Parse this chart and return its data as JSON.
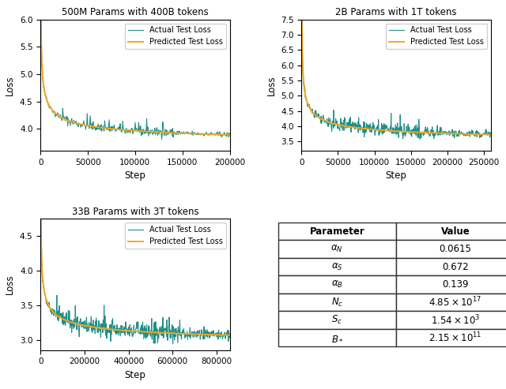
{
  "plot1": {
    "title": "500M Params with 400B tokens",
    "xlabel": "Step",
    "ylabel": "Loss",
    "max_steps": 200000,
    "start_step": 500,
    "start_loss": 6.0,
    "end_loss": 3.65,
    "noise_scale": 0.022,
    "ylim": [
      3.6,
      6.0
    ],
    "xlim": [
      0,
      200000
    ],
    "xticks": [
      0,
      50000,
      100000,
      150000,
      200000
    ],
    "yticks": [
      4.0,
      4.5,
      5.0,
      5.5,
      6.0
    ],
    "actual_color": "#1f8f8a",
    "predicted_color": "#f5a623",
    "legend_loc": "upper right",
    "n_points": 400
  },
  "plot2": {
    "title": "2B Params with 1T tokens",
    "xlabel": "Step",
    "ylabel": "Loss",
    "max_steps": 260000,
    "start_step": 500,
    "start_loss": 7.4,
    "end_loss": 3.35,
    "noise_scale": 0.055,
    "ylim": [
      3.2,
      7.5
    ],
    "xlim": [
      0,
      260000
    ],
    "xticks": [
      0,
      50000,
      100000,
      150000,
      200000,
      250000
    ],
    "yticks": [
      3.5,
      4.0,
      4.5,
      5.0,
      5.5,
      6.0,
      6.5,
      7.0,
      7.5
    ],
    "actual_color": "#1f8f8a",
    "predicted_color": "#f5a623",
    "legend_loc": "upper right",
    "n_points": 500
  },
  "plot3": {
    "title": "33B Params with 3T tokens",
    "xlabel": "Step",
    "ylabel": "Loss",
    "max_steps": 860000,
    "start_step": 2000,
    "start_loss": 4.75,
    "end_loss": 2.88,
    "noise_scale": 0.035,
    "ylim": [
      2.85,
      4.75
    ],
    "xlim": [
      0,
      860000
    ],
    "xticks": [
      0,
      200000,
      400000,
      600000,
      800000
    ],
    "yticks": [
      3.0,
      3.5,
      4.0,
      4.5
    ],
    "actual_color": "#1f8f8a",
    "predicted_color": "#f5a623",
    "legend_loc": "upper right",
    "n_points": 600
  },
  "actual_label": "Actual Test Loss",
  "predicted_label": "Predicted Test Loss",
  "col_labels": [
    "Parameter",
    "Value"
  ],
  "param_labels_tex": [
    "$\\alpha_N$",
    "$\\alpha_S$",
    "$\\alpha_B$",
    "$N_c$",
    "$S_c$",
    "$B_*$"
  ],
  "value_labels_tex": [
    "0.0615",
    "0.672",
    "0.139",
    "$4.85 \\times 10^{17}$",
    "$1.54 \\times 10^{3}$",
    "$2.15 \\times 10^{11}$"
  ],
  "figsize": [
    6.4,
    4.93
  ],
  "dpi": 100
}
